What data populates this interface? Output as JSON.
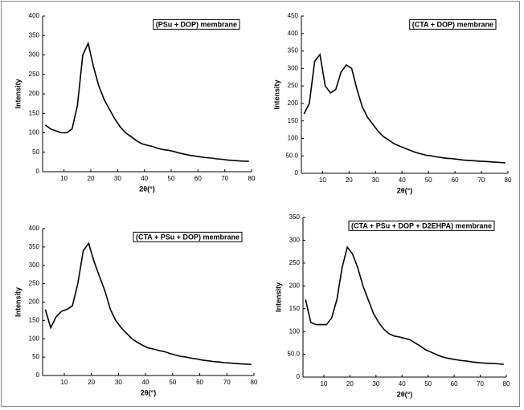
{
  "chart_data": [
    {
      "type": "line",
      "title": "(PSu + DOP) membrane",
      "x_label": "2θ(°)",
      "y_label": "Intensity",
      "x": [
        3,
        5,
        7,
        9,
        11,
        13,
        15,
        17,
        19,
        21,
        23,
        25,
        27,
        29,
        31,
        33,
        35,
        37,
        39,
        41,
        43,
        45,
        47,
        49,
        51,
        53,
        55,
        57,
        59,
        61,
        63,
        65,
        67,
        69,
        71,
        73,
        75,
        77,
        79
      ],
      "values": [
        120,
        110,
        105,
        100,
        100,
        110,
        170,
        300,
        330,
        270,
        220,
        185,
        160,
        135,
        115,
        100,
        90,
        80,
        72,
        68,
        65,
        60,
        57,
        55,
        52,
        48,
        45,
        42,
        40,
        38,
        36,
        35,
        33,
        32,
        30,
        29,
        28,
        27,
        27
      ],
      "color": "#000000",
      "xlim": [
        2,
        80
      ],
      "xticks": [
        10,
        20,
        30,
        40,
        50,
        60,
        70,
        80
      ],
      "ylim": [
        0,
        400
      ],
      "yticks": [
        0,
        50,
        100,
        150,
        200,
        250,
        300,
        350,
        400
      ]
    },
    {
      "type": "line",
      "title": "(CTA + DOP) membrane",
      "x_label": "2θ(°)",
      "y_label": "Intensity",
      "x": [
        3,
        5,
        7,
        9,
        11,
        13,
        15,
        17,
        19,
        21,
        23,
        25,
        27,
        29,
        31,
        33,
        35,
        37,
        39,
        41,
        43,
        45,
        47,
        49,
        51,
        53,
        55,
        57,
        59,
        61,
        63,
        65,
        67,
        69,
        71,
        73,
        75,
        77,
        79
      ],
      "values": [
        170,
        200,
        320,
        340,
        250,
        230,
        240,
        290,
        310,
        300,
        240,
        190,
        160,
        140,
        120,
        105,
        95,
        85,
        78,
        72,
        66,
        60,
        56,
        52,
        50,
        47,
        45,
        43,
        42,
        40,
        38,
        37,
        36,
        35,
        34,
        33,
        32,
        31,
        30
      ],
      "color": "#000000",
      "xlim": [
        2,
        80
      ],
      "xticks": [
        10,
        20,
        30,
        40,
        50,
        60,
        70,
        80
      ],
      "ylim": [
        0,
        450
      ],
      "yticks": [
        0,
        {
          "value": 50,
          "label": "50.0"
        },
        100,
        150,
        200,
        250,
        300,
        350,
        400,
        450
      ]
    },
    {
      "type": "line",
      "title": "(CTA + PSu + DOP) membrane",
      "x_label": "2θ(°)",
      "y_label": "Intensity",
      "x": [
        3,
        5,
        7,
        9,
        11,
        13,
        15,
        17,
        19,
        21,
        23,
        25,
        27,
        29,
        31,
        33,
        35,
        37,
        39,
        41,
        43,
        45,
        47,
        49,
        51,
        53,
        55,
        57,
        59,
        61,
        63,
        65,
        67,
        69,
        71,
        73,
        75,
        77,
        79
      ],
      "values": [
        180,
        130,
        160,
        175,
        180,
        190,
        250,
        340,
        360,
        310,
        270,
        230,
        180,
        150,
        130,
        115,
        100,
        90,
        82,
        75,
        72,
        68,
        65,
        60,
        56,
        52,
        50,
        47,
        45,
        42,
        40,
        38,
        37,
        35,
        34,
        33,
        32,
        31,
        30
      ],
      "color": "#000000",
      "xlim": [
        2,
        80
      ],
      "xticks": [
        10,
        20,
        30,
        40,
        50,
        60,
        70,
        80
      ],
      "ylim": [
        0,
        400
      ],
      "yticks": [
        0,
        50,
        100,
        150,
        200,
        250,
        300,
        350,
        400
      ]
    },
    {
      "type": "line",
      "title": "(CTA + PSu + DOP + D2EHPA) membrane",
      "x_label": "2θ(°)",
      "y_label": "Intensity",
      "x": [
        3,
        5,
        7,
        9,
        11,
        13,
        15,
        17,
        19,
        21,
        23,
        25,
        27,
        29,
        31,
        33,
        35,
        37,
        39,
        41,
        43,
        45,
        47,
        49,
        51,
        53,
        55,
        57,
        59,
        61,
        63,
        65,
        67,
        69,
        71,
        73,
        75,
        77,
        79
      ],
      "values": [
        170,
        120,
        115,
        115,
        115,
        130,
        170,
        240,
        285,
        270,
        240,
        200,
        170,
        140,
        120,
        105,
        95,
        90,
        88,
        85,
        82,
        75,
        68,
        60,
        55,
        50,
        45,
        42,
        40,
        38,
        36,
        35,
        33,
        32,
        31,
        30,
        30,
        29,
        28
      ],
      "color": "#000000",
      "xlim": [
        2,
        80
      ],
      "xticks": [
        10,
        20,
        30,
        40,
        50,
        60,
        70,
        80
      ],
      "ylim": [
        0,
        350
      ],
      "yticks": [
        0,
        {
          "value": 50,
          "label": "50.0"
        },
        100,
        150,
        200,
        250,
        300,
        350
      ]
    }
  ]
}
